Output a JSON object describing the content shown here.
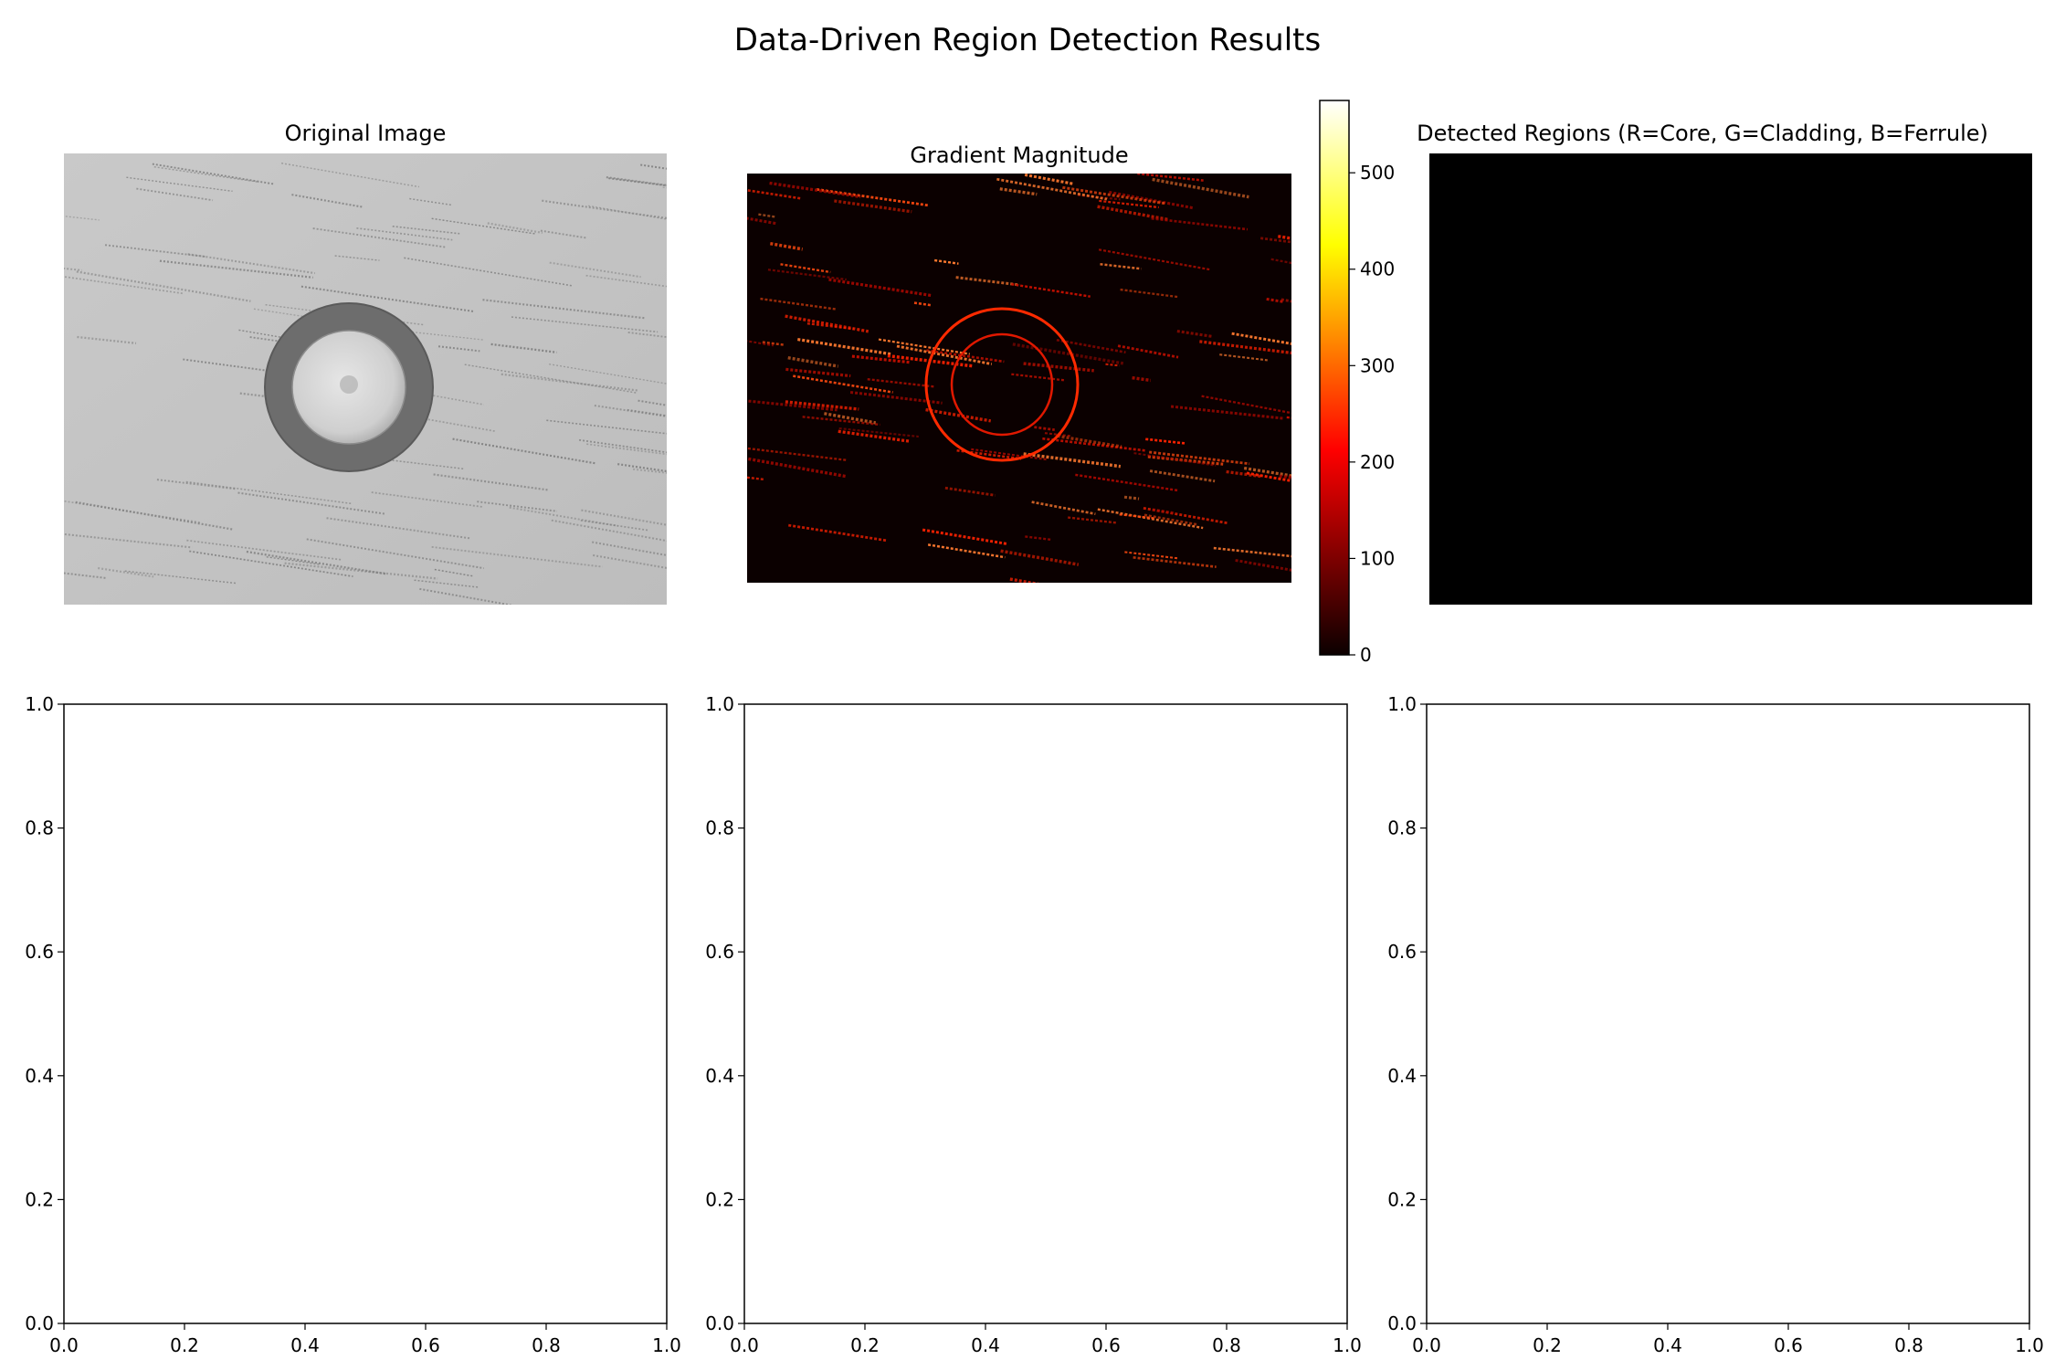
{
  "figure": {
    "suptitle": "Data-Driven Region Detection Results"
  },
  "panels": {
    "original": {
      "title": "Original Image"
    },
    "gradient": {
      "title": "Gradient Magnitude"
    },
    "detected": {
      "title": "Detected Regions (R=Core, G=Cladding, B=Ferrule)"
    }
  },
  "chart_data": [
    {
      "type": "image",
      "title": "Original Image",
      "colormap": "gray"
    },
    {
      "type": "heatmap",
      "title": "Gradient Magnitude",
      "colormap": "hot",
      "colorbar": {
        "ticks": [
          "0",
          "100",
          "200",
          "300",
          "400",
          "500"
        ],
        "range": [
          0,
          575
        ]
      }
    },
    {
      "type": "image",
      "title": "Detected Regions (R=Core, G=Cladding, B=Ferrule)",
      "fill": "#000000"
    },
    {
      "type": "scatter",
      "empty": true,
      "xlim": [
        0,
        1
      ],
      "ylim": [
        0,
        1
      ],
      "xticks": [
        "0.0",
        "0.2",
        "0.4",
        "0.6",
        "0.8",
        "1.0"
      ],
      "yticks": [
        "0.0",
        "0.2",
        "0.4",
        "0.6",
        "0.8",
        "1.0"
      ]
    },
    {
      "type": "scatter",
      "empty": true,
      "xlim": [
        0,
        1
      ],
      "ylim": [
        0,
        1
      ],
      "xticks": [
        "0.0",
        "0.2",
        "0.4",
        "0.6",
        "0.8",
        "1.0"
      ],
      "yticks": [
        "0.0",
        "0.2",
        "0.4",
        "0.6",
        "0.8",
        "1.0"
      ]
    },
    {
      "type": "scatter",
      "empty": true,
      "xlim": [
        0,
        1
      ],
      "ylim": [
        0,
        1
      ],
      "xticks": [
        "0.0",
        "0.2",
        "0.4",
        "0.6",
        "0.8",
        "1.0"
      ],
      "yticks": [
        "0.0",
        "0.2",
        "0.4",
        "0.6",
        "0.8",
        "1.0"
      ]
    }
  ],
  "colors": {
    "detected_fill": "#000000",
    "gradient_ring": "#ff2a00",
    "gradient_background": "#0b0000"
  }
}
